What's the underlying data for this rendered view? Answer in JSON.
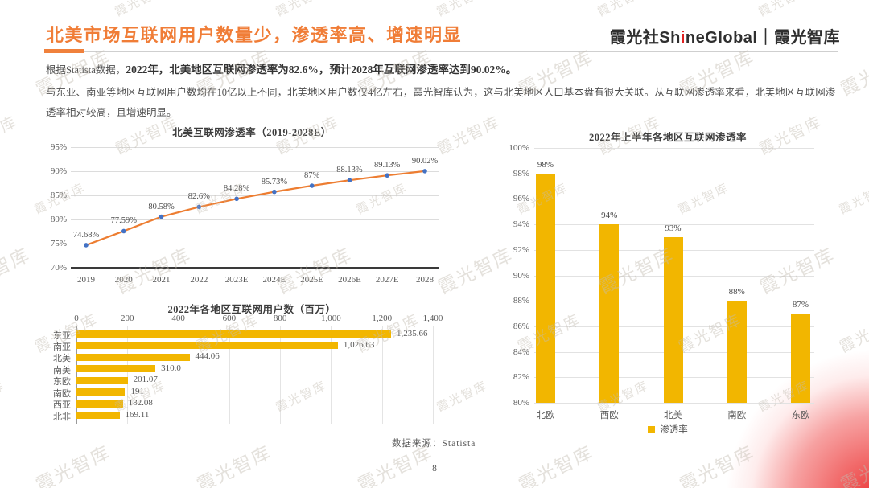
{
  "page": {
    "title": "北美市场互联网用户数量少，渗透率高、增速明显",
    "page_number": "8",
    "source_note": "数据来源：Statista",
    "watermark_text": "霞光智库"
  },
  "logo": {
    "part1": "霞光社Sh",
    "accent": "i",
    "part2": "neGlobal｜霞光智库"
  },
  "intro": {
    "p1_normal": "根据Statista数据，",
    "p1_bold": "2022年，北美地区互联网渗透率为82.6%，预计2028年互联网渗透率达到90.02%。",
    "p2": "与东亚、南亚等地区互联网用户数均在10亿以上不同，北美地区用户数仅4亿左右，霞光智库认为，这与北美地区人口基本盘有很大关联。从互联网渗透率来看，北美地区互联网渗透率相对较高，且增速明显。"
  },
  "colors": {
    "accent_orange": "#F0813C",
    "logo_accent_red": "#E02020",
    "corner_red": "#EB2A2A",
    "watermark_gray": "#C4BCB2"
  },
  "chart_data": [
    {
      "type": "line",
      "title": "北美互联网渗透率（2019-2028E）",
      "x": [
        "2019",
        "2020",
        "2021",
        "2022",
        "2023E",
        "2024E",
        "2025E",
        "2026E",
        "2027E",
        "2028"
      ],
      "values": [
        74.68,
        77.59,
        80.58,
        82.6,
        84.28,
        85.73,
        87,
        88.13,
        89.13,
        90.02
      ],
      "labels": [
        "74.68%",
        "77.59%",
        "80.58%",
        "82.6%",
        "84.28%",
        "85.73%",
        "87%",
        "88.13%",
        "89.13%",
        "90.02%"
      ],
      "ylim": [
        70,
        95
      ],
      "yticks": [
        "95%",
        "90%",
        "85%",
        "80%",
        "75%",
        "70%"
      ],
      "grid": true,
      "legend_position": "none",
      "line_color": "#ED7D31",
      "marker_color": "#4472C4"
    },
    {
      "type": "bar-horizontal",
      "title": "2022年各地区互联网用户数（百万）",
      "categories": [
        "东亚",
        "南亚",
        "北美",
        "南美",
        "东欧",
        "南欧",
        "西亚",
        "北非"
      ],
      "values": [
        1235.66,
        1026.63,
        444.06,
        310.0,
        201.07,
        191,
        182.08,
        169.11
      ],
      "labels": [
        "1,235.66",
        "1,026.63",
        "444.06",
        "310.0",
        "201.07",
        "191",
        "182.08",
        "169.11"
      ],
      "xlim": [
        0,
        1400
      ],
      "xticks": [
        "0",
        "200",
        "400",
        "600",
        "800",
        "1,000",
        "1,200",
        "1,400"
      ],
      "grid": true,
      "legend_position": "none",
      "bar_color": "#F2B600"
    },
    {
      "type": "bar",
      "title": "2022年上半年各地区互联网渗透率",
      "categories": [
        "北欧",
        "西欧",
        "北美",
        "南欧",
        "东欧"
      ],
      "values": [
        98,
        94,
        93,
        88,
        87
      ],
      "labels": [
        "98%",
        "94%",
        "93%",
        "88%",
        "87%"
      ],
      "ylim": [
        80,
        100
      ],
      "yticks": [
        "100%",
        "98%",
        "96%",
        "94%",
        "92%",
        "90%",
        "88%",
        "86%",
        "84%",
        "82%",
        "80%"
      ],
      "grid": true,
      "legend": "渗透率",
      "legend_position": "bottom",
      "bar_color": "#F2B600"
    }
  ]
}
